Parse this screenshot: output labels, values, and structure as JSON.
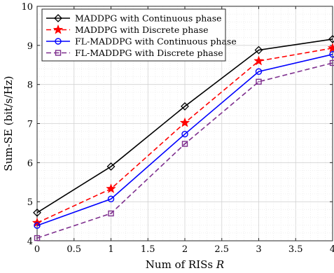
{
  "chart_data": {
    "type": "line",
    "title": "",
    "xlabel_text": "Num of RISs ",
    "xlabel_var": "R",
    "ylabel": "Sum-SE (bit/s/Hz)",
    "x": [
      0,
      1,
      2,
      3,
      4
    ],
    "xlim": [
      0,
      4
    ],
    "ylim": [
      4,
      10
    ],
    "xticks": [
      "0",
      "0.5",
      "1",
      "1.5",
      "2",
      "2.5",
      "3",
      "3.5",
      "4"
    ],
    "yticks": [
      "4",
      "5",
      "6",
      "7",
      "8",
      "9",
      "10"
    ],
    "grid": true,
    "legend_position": "top-left",
    "series": [
      {
        "name": "MADDPG with Continuous phase",
        "values": [
          4.72,
          5.9,
          7.44,
          8.88,
          9.16
        ],
        "color": "#000000",
        "dash": "solid",
        "marker": "diamond"
      },
      {
        "name": "MADDPG with Discrete phase",
        "values": [
          4.46,
          5.33,
          7.02,
          8.6,
          8.93
        ],
        "color": "#ff0000",
        "dash": "dashed",
        "marker": "star"
      },
      {
        "name": "FL-MADDPG with Continuous phase",
        "values": [
          4.39,
          5.07,
          6.73,
          8.33,
          8.77
        ],
        "color": "#0000ff",
        "dash": "solid",
        "marker": "circle"
      },
      {
        "name": "FL-MADDPG with Discrete phase",
        "values": [
          4.07,
          4.7,
          6.48,
          8.07,
          8.55
        ],
        "color": "#7e2f8e",
        "dash": "dashed",
        "marker": "square"
      }
    ]
  }
}
